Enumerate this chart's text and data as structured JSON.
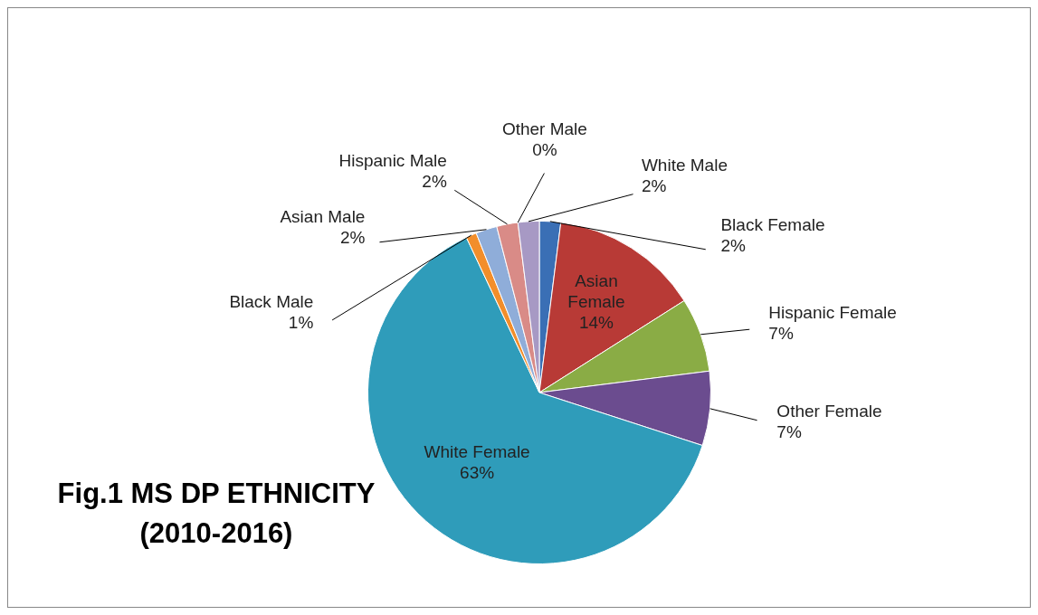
{
  "chart_data": {
    "type": "pie",
    "title": "Fig.1 MS DP ETHNICITY (2010-2016)",
    "categories": [
      "Black Female",
      "Asian Female",
      "Hispanic Female",
      "Other Female",
      "White Female",
      "Black Male",
      "Asian Male",
      "Hispanic Male",
      "Other Male",
      "White Male"
    ],
    "values": [
      2,
      14,
      7,
      7,
      63,
      1,
      2,
      2,
      0,
      2
    ],
    "value_labels": [
      "2%",
      "14%",
      "7%",
      "7%",
      "63%",
      "1%",
      "2%",
      "2%",
      "0%",
      "2%"
    ],
    "colors": [
      "#3a6fb5",
      "#b83a36",
      "#8aac45",
      "#6b4c8f",
      "#2f9cba",
      "#f28e2b",
      "#8fadd9",
      "#d98b87",
      "#b7cf8c",
      "#a799c4"
    ]
  }
}
